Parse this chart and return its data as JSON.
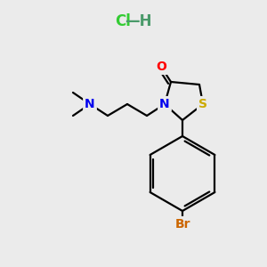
{
  "background_color": "#ebebeb",
  "hcl_color": "#33cc33",
  "h_color": "#4a9a6a",
  "atom_colors": {
    "N": "#0000ee",
    "O": "#ff0000",
    "S": "#ccaa00",
    "Br": "#cc6600",
    "C": "#000000"
  },
  "bond_color": "#000000",
  "bond_width": 1.6
}
